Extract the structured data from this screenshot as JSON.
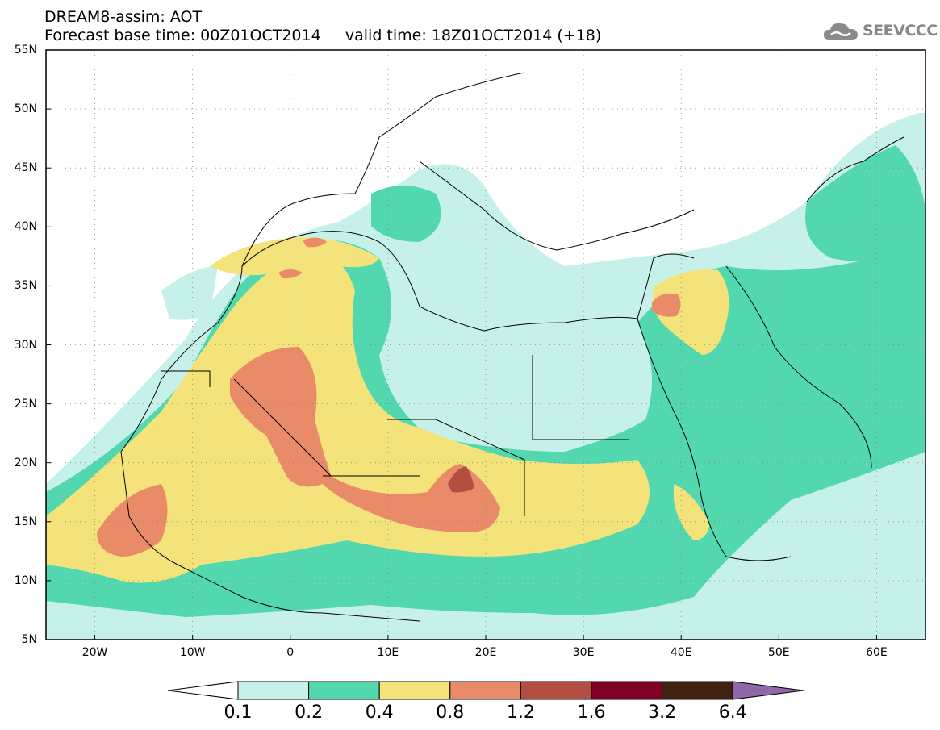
{
  "header": {
    "title_line1": "DREAM8-assim: AOT",
    "title_line2": "Forecast base time: 00Z01OCT2014     valid time: 18Z01OCT2014 (+18)",
    "logo_text": "SEEVCCC",
    "logo_icon": "cloud-icon"
  },
  "map": {
    "lat_labels": [
      "55N",
      "50N",
      "45N",
      "40N",
      "35N",
      "30N",
      "25N",
      "20N",
      "15N",
      "10N",
      "5N"
    ],
    "lon_labels": [
      "20W",
      "10W",
      "0",
      "10E",
      "20E",
      "30E",
      "40E",
      "50E",
      "60E"
    ],
    "lat_values": [
      55,
      50,
      45,
      40,
      35,
      30,
      25,
      20,
      15,
      10,
      5
    ],
    "lon_values": [
      -20,
      -10,
      0,
      10,
      20,
      30,
      40,
      50,
      60
    ],
    "extent": {
      "lon_min": -25,
      "lon_max": 65,
      "lat_min": 5,
      "lat_max": 55
    },
    "gridlines": "dotted"
  },
  "colorbar": {
    "labels": [
      "0.1",
      "0.2",
      "0.4",
      "0.8",
      "1.2",
      "1.6",
      "3.2",
      "6.4"
    ],
    "colors": [
      "#ffffff",
      "#c6f1ea",
      "#52d7af",
      "#f4e37a",
      "#e98a68",
      "#b24e42",
      "#7f0224",
      "#3f2310",
      "#8e68a9"
    ]
  },
  "colors": {
    "level1": "#c6f1ea",
    "level2": "#52d7af",
    "level3": "#f4e37a",
    "level4": "#e98a68",
    "level5": "#b24e42"
  }
}
